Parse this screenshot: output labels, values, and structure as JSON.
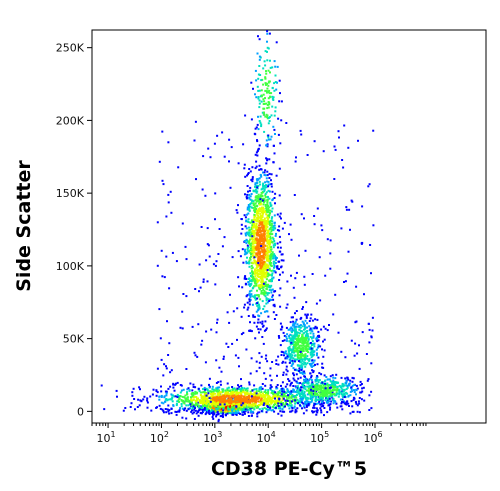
{
  "chart_data": {
    "type": "scatter",
    "subtype": "flow-cytometry-density-dot-plot",
    "xlabel": "CD38 PE-Cy™5",
    "ylabel": "Side Scatter",
    "x_scale": "log",
    "xlim": [
      5,
      120000000
    ],
    "ylim": [
      -8000,
      262144
    ],
    "x_ticks": [
      {
        "value": 10,
        "base": "10",
        "exp": "1"
      },
      {
        "value": 100,
        "base": "10",
        "exp": "2"
      },
      {
        "value": 1000,
        "base": "10",
        "exp": "3"
      },
      {
        "value": 10000,
        "base": "10",
        "exp": "4"
      },
      {
        "value": 100000,
        "base": "10",
        "exp": "5"
      },
      {
        "value": 1000000,
        "base": "10",
        "exp": "6"
      }
    ],
    "y_ticks": [
      {
        "value": 0,
        "label": "0"
      },
      {
        "value": 50000,
        "label": "50K"
      },
      {
        "value": 100000,
        "label": "100K"
      },
      {
        "value": 150000,
        "label": "150K"
      },
      {
        "value": 200000,
        "label": "200K"
      },
      {
        "value": 250000,
        "label": "250K"
      }
    ],
    "grid": false,
    "legend": "none",
    "color_scale": [
      "#0000ff",
      "#00a0ff",
      "#00e0c0",
      "#40ff40",
      "#e0ff00",
      "#ff8000",
      "#ff0000"
    ],
    "populations": [
      {
        "center_x": 1500,
        "center_y": 4000,
        "x_spread_decades": 0.22,
        "y_spread": 2500,
        "density": "very high"
      },
      {
        "center_x": 2500,
        "center_y": 9000,
        "x_spread_decades": 0.75,
        "y_spread": 4500,
        "density": "high"
      },
      {
        "center_x": 7000,
        "center_y": 115000,
        "x_spread_decades": 0.15,
        "y_spread": 25000,
        "density": "high"
      },
      {
        "center_x": 40000,
        "center_y": 45000,
        "x_spread_decades": 0.17,
        "y_spread": 10000,
        "density": "medium"
      },
      {
        "center_x": 9000,
        "center_y": 220000,
        "x_spread_decades": 0.12,
        "y_spread": 22000,
        "density": "low"
      },
      {
        "center_x": 100000,
        "center_y": 15000,
        "x_spread_decades": 0.35,
        "y_spread": 5000,
        "density": "medium"
      }
    ]
  }
}
